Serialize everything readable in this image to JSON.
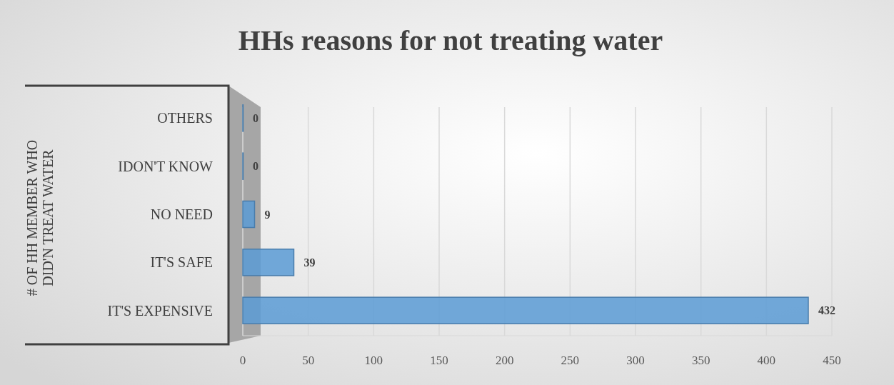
{
  "chart_data": {
    "type": "bar",
    "orientation": "horizontal",
    "title": "HHs reasons for not treating water",
    "ylabel": "# OF HH MEMBER WHO DID'N TREAT WATER",
    "categories": [
      "OTHERS",
      "IDON'T KNOW",
      "NO NEED",
      "IT'S SAFE",
      "IT'S EXPENSIVE"
    ],
    "values": [
      0,
      0,
      9,
      39,
      432
    ],
    "color": "#5b9bd5",
    "xlim": [
      0,
      450
    ],
    "xticks": [
      0,
      50,
      100,
      150,
      200,
      250,
      300,
      350,
      400,
      450
    ],
    "grid": "x",
    "data_labels": true
  }
}
